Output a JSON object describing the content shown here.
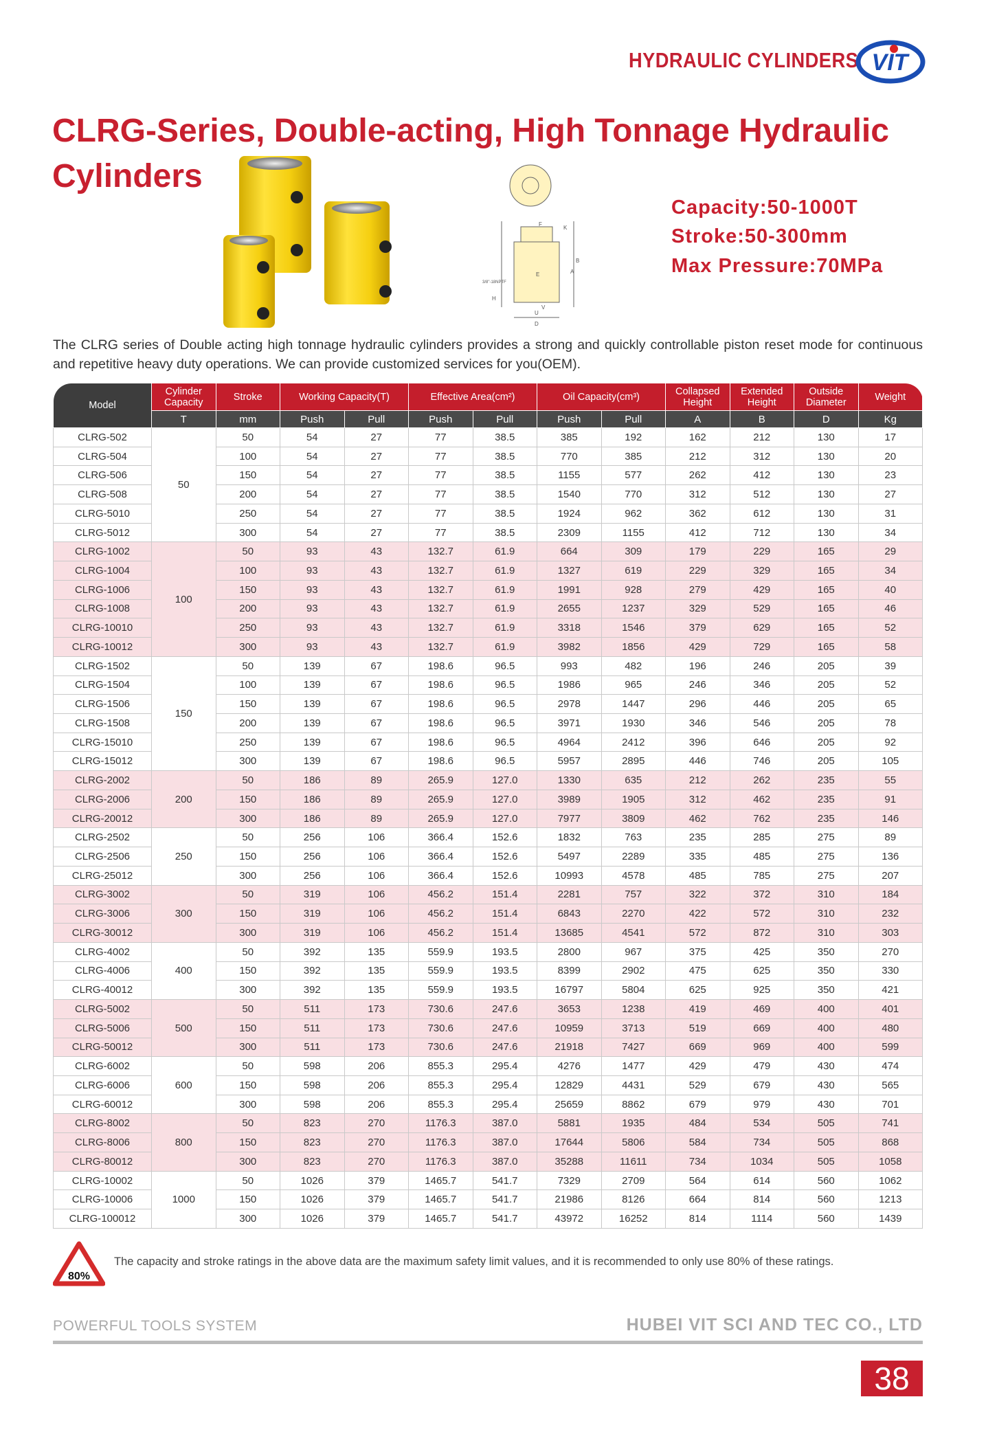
{
  "header": {
    "title": "HYDRAULIC CYLINDERS",
    "logo_text": "VIT",
    "brand_color": "#c8202f",
    "logo_color": "#1a4db3"
  },
  "title": "CLRG-Series, Double-acting, High Tonnage Hydraulic Cylinders",
  "specs": [
    "Capacity:50-1000T",
    "Stroke:50-300mm",
    "Max Pressure:70MPa"
  ],
  "diagram": {
    "labels": [
      "F",
      "K",
      "B",
      "A",
      "E",
      "U",
      "V",
      "D",
      "H",
      "3/8\"-18NPTF"
    ]
  },
  "description": "The CLRG series of Double acting high tonnage hydraulic cylinders provides a strong and quickly controllable piston reset mode for continuous and repetitive heavy duty operations. We can provide customized services for you(OEM).",
  "table": {
    "headers": {
      "model": "Model",
      "capacity": "Cylinder Capacity",
      "stroke": "Stroke",
      "working": "Working Capacity(T)",
      "area": "Effective Area(cm²)",
      "oil": "Oil Capacity(cm³)",
      "collapsed": "Collapsed Height",
      "extended": "Extended Height",
      "outside": "Outside Diameter",
      "weight": "Weight"
    },
    "units": [
      "T",
      "mm",
      "Push",
      "Pull",
      "Push",
      "Pull",
      "Push",
      "Pull",
      "A",
      "B",
      "D",
      "Kg"
    ],
    "groups": [
      {
        "capacity": "50",
        "rows": [
          [
            "CLRG-502",
            "50",
            "54",
            "27",
            "77",
            "38.5",
            "385",
            "192",
            "162",
            "212",
            "130",
            "17"
          ],
          [
            "CLRG-504",
            "100",
            "54",
            "27",
            "77",
            "38.5",
            "770",
            "385",
            "212",
            "312",
            "130",
            "20"
          ],
          [
            "CLRG-506",
            "150",
            "54",
            "27",
            "77",
            "38.5",
            "1155",
            "577",
            "262",
            "412",
            "130",
            "23"
          ],
          [
            "CLRG-508",
            "200",
            "54",
            "27",
            "77",
            "38.5",
            "1540",
            "770",
            "312",
            "512",
            "130",
            "27"
          ],
          [
            "CLRG-5010",
            "250",
            "54",
            "27",
            "77",
            "38.5",
            "1924",
            "962",
            "362",
            "612",
            "130",
            "31"
          ],
          [
            "CLRG-5012",
            "300",
            "54",
            "27",
            "77",
            "38.5",
            "2309",
            "1155",
            "412",
            "712",
            "130",
            "34"
          ]
        ]
      },
      {
        "capacity": "100",
        "rows": [
          [
            "CLRG-1002",
            "50",
            "93",
            "43",
            "132.7",
            "61.9",
            "664",
            "309",
            "179",
            "229",
            "165",
            "29"
          ],
          [
            "CLRG-1004",
            "100",
            "93",
            "43",
            "132.7",
            "61.9",
            "1327",
            "619",
            "229",
            "329",
            "165",
            "34"
          ],
          [
            "CLRG-1006",
            "150",
            "93",
            "43",
            "132.7",
            "61.9",
            "1991",
            "928",
            "279",
            "429",
            "165",
            "40"
          ],
          [
            "CLRG-1008",
            "200",
            "93",
            "43",
            "132.7",
            "61.9",
            "2655",
            "1237",
            "329",
            "529",
            "165",
            "46"
          ],
          [
            "CLRG-10010",
            "250",
            "93",
            "43",
            "132.7",
            "61.9",
            "3318",
            "1546",
            "379",
            "629",
            "165",
            "52"
          ],
          [
            "CLRG-10012",
            "300",
            "93",
            "43",
            "132.7",
            "61.9",
            "3982",
            "1856",
            "429",
            "729",
            "165",
            "58"
          ]
        ]
      },
      {
        "capacity": "150",
        "rows": [
          [
            "CLRG-1502",
            "50",
            "139",
            "67",
            "198.6",
            "96.5",
            "993",
            "482",
            "196",
            "246",
            "205",
            "39"
          ],
          [
            "CLRG-1504",
            "100",
            "139",
            "67",
            "198.6",
            "96.5",
            "1986",
            "965",
            "246",
            "346",
            "205",
            "52"
          ],
          [
            "CLRG-1506",
            "150",
            "139",
            "67",
            "198.6",
            "96.5",
            "2978",
            "1447",
            "296",
            "446",
            "205",
            "65"
          ],
          [
            "CLRG-1508",
            "200",
            "139",
            "67",
            "198.6",
            "96.5",
            "3971",
            "1930",
            "346",
            "546",
            "205",
            "78"
          ],
          [
            "CLRG-15010",
            "250",
            "139",
            "67",
            "198.6",
            "96.5",
            "4964",
            "2412",
            "396",
            "646",
            "205",
            "92"
          ],
          [
            "CLRG-15012",
            "300",
            "139",
            "67",
            "198.6",
            "96.5",
            "5957",
            "2895",
            "446",
            "746",
            "205",
            "105"
          ]
        ]
      },
      {
        "capacity": "200",
        "rows": [
          [
            "CLRG-2002",
            "50",
            "186",
            "89",
            "265.9",
            "127.0",
            "1330",
            "635",
            "212",
            "262",
            "235",
            "55"
          ],
          [
            "CLRG-2006",
            "150",
            "186",
            "89",
            "265.9",
            "127.0",
            "3989",
            "1905",
            "312",
            "462",
            "235",
            "91"
          ],
          [
            "CLRG-20012",
            "300",
            "186",
            "89",
            "265.9",
            "127.0",
            "7977",
            "3809",
            "462",
            "762",
            "235",
            "146"
          ]
        ]
      },
      {
        "capacity": "250",
        "rows": [
          [
            "CLRG-2502",
            "50",
            "256",
            "106",
            "366.4",
            "152.6",
            "1832",
            "763",
            "235",
            "285",
            "275",
            "89"
          ],
          [
            "CLRG-2506",
            "150",
            "256",
            "106",
            "366.4",
            "152.6",
            "5497",
            "2289",
            "335",
            "485",
            "275",
            "136"
          ],
          [
            "CLRG-25012",
            "300",
            "256",
            "106",
            "366.4",
            "152.6",
            "10993",
            "4578",
            "485",
            "785",
            "275",
            "207"
          ]
        ]
      },
      {
        "capacity": "300",
        "rows": [
          [
            "CLRG-3002",
            "50",
            "319",
            "106",
            "456.2",
            "151.4",
            "2281",
            "757",
            "322",
            "372",
            "310",
            "184"
          ],
          [
            "CLRG-3006",
            "150",
            "319",
            "106",
            "456.2",
            "151.4",
            "6843",
            "2270",
            "422",
            "572",
            "310",
            "232"
          ],
          [
            "CLRG-30012",
            "300",
            "319",
            "106",
            "456.2",
            "151.4",
            "13685",
            "4541",
            "572",
            "872",
            "310",
            "303"
          ]
        ]
      },
      {
        "capacity": "400",
        "rows": [
          [
            "CLRG-4002",
            "50",
            "392",
            "135",
            "559.9",
            "193.5",
            "2800",
            "967",
            "375",
            "425",
            "350",
            "270"
          ],
          [
            "CLRG-4006",
            "150",
            "392",
            "135",
            "559.9",
            "193.5",
            "8399",
            "2902",
            "475",
            "625",
            "350",
            "330"
          ],
          [
            "CLRG-40012",
            "300",
            "392",
            "135",
            "559.9",
            "193.5",
            "16797",
            "5804",
            "625",
            "925",
            "350",
            "421"
          ]
        ]
      },
      {
        "capacity": "500",
        "rows": [
          [
            "CLRG-5002",
            "50",
            "511",
            "173",
            "730.6",
            "247.6",
            "3653",
            "1238",
            "419",
            "469",
            "400",
            "401"
          ],
          [
            "CLRG-5006",
            "150",
            "511",
            "173",
            "730.6",
            "247.6",
            "10959",
            "3713",
            "519",
            "669",
            "400",
            "480"
          ],
          [
            "CLRG-50012",
            "300",
            "511",
            "173",
            "730.6",
            "247.6",
            "21918",
            "7427",
            "669",
            "969",
            "400",
            "599"
          ]
        ]
      },
      {
        "capacity": "600",
        "rows": [
          [
            "CLRG-6002",
            "50",
            "598",
            "206",
            "855.3",
            "295.4",
            "4276",
            "1477",
            "429",
            "479",
            "430",
            "474"
          ],
          [
            "CLRG-6006",
            "150",
            "598",
            "206",
            "855.3",
            "295.4",
            "12829",
            "4431",
            "529",
            "679",
            "430",
            "565"
          ],
          [
            "CLRG-60012",
            "300",
            "598",
            "206",
            "855.3",
            "295.4",
            "25659",
            "8862",
            "679",
            "979",
            "430",
            "701"
          ]
        ]
      },
      {
        "capacity": "800",
        "rows": [
          [
            "CLRG-8002",
            "50",
            "823",
            "270",
            "1176.3",
            "387.0",
            "5881",
            "1935",
            "484",
            "534",
            "505",
            "741"
          ],
          [
            "CLRG-8006",
            "150",
            "823",
            "270",
            "1176.3",
            "387.0",
            "17644",
            "5806",
            "584",
            "734",
            "505",
            "868"
          ],
          [
            "CLRG-80012",
            "300",
            "823",
            "270",
            "1176.3",
            "387.0",
            "35288",
            "11611",
            "734",
            "1034",
            "505",
            "1058"
          ]
        ]
      },
      {
        "capacity": "1000",
        "rows": [
          [
            "CLRG-10002",
            "50",
            "1026",
            "379",
            "1465.7",
            "541.7",
            "7329",
            "2709",
            "564",
            "614",
            "560",
            "1062"
          ],
          [
            "CLRG-10006",
            "150",
            "1026",
            "379",
            "1465.7",
            "541.7",
            "21986",
            "8126",
            "664",
            "814",
            "560",
            "1213"
          ],
          [
            "CLRG-100012",
            "300",
            "1026",
            "379",
            "1465.7",
            "541.7",
            "43972",
            "16252",
            "814",
            "1114",
            "560",
            "1439"
          ]
        ]
      }
    ],
    "row_colors": {
      "pink": "#f9dfe3",
      "white": "#ffffff",
      "header_red": "#c41e2c",
      "header_dark": "#4a4a4a"
    }
  },
  "note": {
    "icon_text": "80%",
    "text": "The capacity and stroke ratings in the above data are the maximum safety limit values, and it is recommended to only use 80% of these ratings."
  },
  "footer": {
    "left": "POWERFUL TOOLS SYSTEM",
    "right": "HUBEI VIT SCI AND TEC CO., LTD",
    "page": "38"
  }
}
